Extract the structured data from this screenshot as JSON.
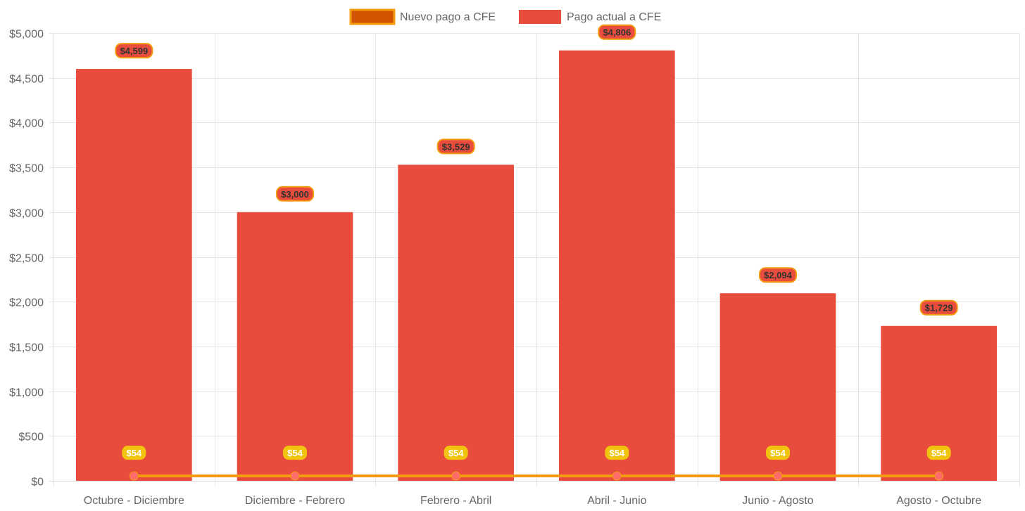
{
  "chart_data": {
    "type": "bar",
    "categories": [
      "Octubre - Diciembre",
      "Diciembre - Febrero",
      "Febrero - Abril",
      "Abril - Junio",
      "Junio - Agosto",
      "Agosto - Octubre"
    ],
    "series": [
      {
        "name": "Nuevo pago a CFE",
        "type": "line",
        "values": [
          54,
          54,
          54,
          54,
          54,
          54
        ],
        "labels": [
          "$54",
          "$54",
          "$54",
          "$54",
          "$54",
          "$54"
        ],
        "color": "#f39c12",
        "legend_fill": "#d35400",
        "point_color": "#ff6b6b",
        "label_bg": "#f1c40f",
        "label_text_color": "#ffffff"
      },
      {
        "name": "Pago actual a CFE",
        "type": "bar",
        "values": [
          4599,
          3000,
          3529,
          4806,
          2094,
          1729
        ],
        "labels": [
          "$4,599",
          "$3,000",
          "$3,529",
          "$4,806",
          "$2,094",
          "$1,729"
        ],
        "color": "#e74c3c",
        "label_border": "#f39c12",
        "label_text_color": "#333333"
      }
    ],
    "y_ticks": [
      {
        "value": 0,
        "label": "$0"
      },
      {
        "value": 500,
        "label": "$500"
      },
      {
        "value": 1000,
        "label": "$1,000"
      },
      {
        "value": 1500,
        "label": "$1,500"
      },
      {
        "value": 2000,
        "label": "$2,000"
      },
      {
        "value": 2500,
        "label": "$2,500"
      },
      {
        "value": 3000,
        "label": "$3,000"
      },
      {
        "value": 3500,
        "label": "$3,500"
      },
      {
        "value": 4000,
        "label": "$4,000"
      },
      {
        "value": 4500,
        "label": "$4,500"
      },
      {
        "value": 5000,
        "label": "$5,000"
      }
    ],
    "ylim": [
      0,
      5000
    ],
    "grid": true,
    "legend_position": "top-center",
    "title": "",
    "xlabel": "",
    "ylabel": "",
    "grid_color": "#e5e5e5",
    "text_color": "#666666"
  }
}
